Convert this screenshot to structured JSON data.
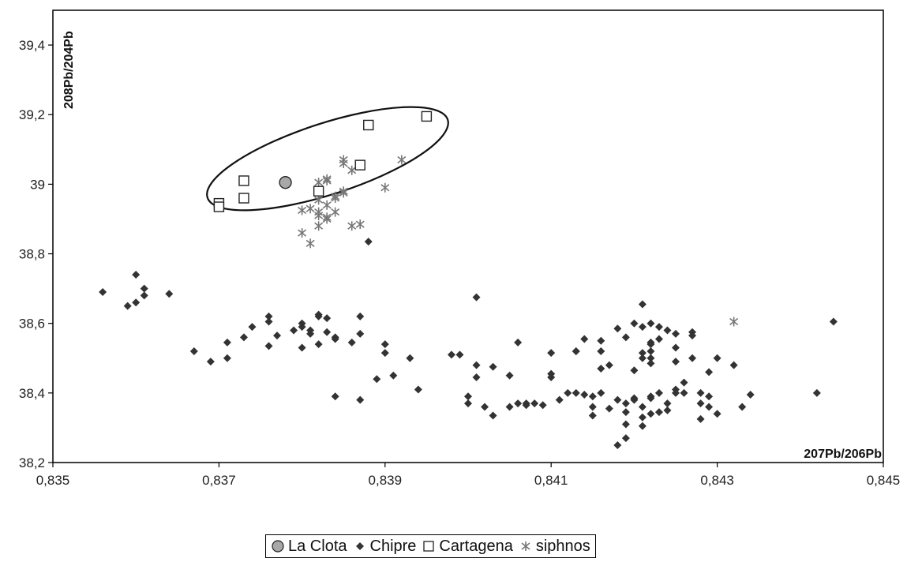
{
  "chart_data": {
    "type": "scatter",
    "xlabel": "207Pb/206Pb",
    "ylabel": "208Pb/204Pb",
    "xlim": [
      0.835,
      0.845
    ],
    "ylim": [
      38.2,
      39.5
    ],
    "x_ticks": [
      "0,835",
      "0,837",
      "0,839",
      "0,841",
      "0,843",
      "0,845"
    ],
    "y_ticks": [
      "38,2",
      "38,4",
      "38,6",
      "38,8",
      "39",
      "39,2",
      "39,4"
    ],
    "grid": false,
    "legend_position": "bottom",
    "annotation": "ellipse enclosing La Clota and Cartagena points",
    "series": [
      {
        "name": "La Clota",
        "marker": "circle",
        "color": "#a8a8a8",
        "points": [
          [
            0.8378,
            39.005
          ]
        ]
      },
      {
        "name": "Chipre",
        "marker": "diamond",
        "color": "#333333",
        "points": [
          [
            0.8356,
            38.69
          ],
          [
            0.8359,
            38.65
          ],
          [
            0.836,
            38.74
          ],
          [
            0.836,
            38.66
          ],
          [
            0.8361,
            38.7
          ],
          [
            0.8361,
            38.68
          ],
          [
            0.8364,
            38.685
          ],
          [
            0.8367,
            38.52
          ],
          [
            0.8369,
            38.49
          ],
          [
            0.8371,
            38.545
          ],
          [
            0.8371,
            38.5
          ],
          [
            0.8373,
            38.56
          ],
          [
            0.8374,
            38.59
          ],
          [
            0.8376,
            38.62
          ],
          [
            0.8376,
            38.605
          ],
          [
            0.8376,
            38.535
          ],
          [
            0.8377,
            38.565
          ],
          [
            0.8379,
            38.58
          ],
          [
            0.838,
            38.6
          ],
          [
            0.838,
            38.59
          ],
          [
            0.838,
            38.53
          ],
          [
            0.8381,
            38.57
          ],
          [
            0.8381,
            38.58
          ],
          [
            0.8382,
            38.625
          ],
          [
            0.8382,
            38.62
          ],
          [
            0.8382,
            38.54
          ],
          [
            0.8383,
            38.615
          ],
          [
            0.8383,
            38.575
          ],
          [
            0.8384,
            38.56
          ],
          [
            0.8384,
            38.555
          ],
          [
            0.8384,
            38.39
          ],
          [
            0.8386,
            38.545
          ],
          [
            0.8387,
            38.62
          ],
          [
            0.8387,
            38.57
          ],
          [
            0.8387,
            38.38
          ],
          [
            0.8388,
            38.835
          ],
          [
            0.8389,
            38.44
          ],
          [
            0.839,
            38.54
          ],
          [
            0.839,
            38.515
          ],
          [
            0.8391,
            38.45
          ],
          [
            0.8393,
            38.5
          ],
          [
            0.8394,
            38.41
          ],
          [
            0.8398,
            38.51
          ],
          [
            0.8399,
            38.51
          ],
          [
            0.84,
            38.39
          ],
          [
            0.84,
            38.37
          ],
          [
            0.8401,
            38.445
          ],
          [
            0.8401,
            38.48
          ],
          [
            0.8401,
            38.675
          ],
          [
            0.8402,
            38.36
          ],
          [
            0.8403,
            38.335
          ],
          [
            0.8403,
            38.475
          ],
          [
            0.8405,
            38.36
          ],
          [
            0.8405,
            38.45
          ],
          [
            0.8406,
            38.37
          ],
          [
            0.8406,
            38.545
          ],
          [
            0.8407,
            38.365
          ],
          [
            0.8407,
            38.37
          ],
          [
            0.8408,
            38.37
          ],
          [
            0.8409,
            38.365
          ],
          [
            0.841,
            38.445
          ],
          [
            0.841,
            38.515
          ],
          [
            0.841,
            38.455
          ],
          [
            0.8411,
            38.38
          ],
          [
            0.8412,
            38.4
          ],
          [
            0.8413,
            38.52
          ],
          [
            0.8413,
            38.52
          ],
          [
            0.8413,
            38.4
          ],
          [
            0.8414,
            38.395
          ],
          [
            0.8414,
            38.555
          ],
          [
            0.8415,
            38.39
          ],
          [
            0.8415,
            38.36
          ],
          [
            0.8415,
            38.335
          ],
          [
            0.8416,
            38.47
          ],
          [
            0.8416,
            38.52
          ],
          [
            0.8416,
            38.55
          ],
          [
            0.8416,
            38.4
          ],
          [
            0.8417,
            38.48
          ],
          [
            0.8417,
            38.355
          ],
          [
            0.8418,
            38.585
          ],
          [
            0.8418,
            38.38
          ],
          [
            0.8418,
            38.25
          ],
          [
            0.8419,
            38.56
          ],
          [
            0.8419,
            38.37
          ],
          [
            0.8419,
            38.345
          ],
          [
            0.8419,
            38.31
          ],
          [
            0.8419,
            38.27
          ],
          [
            0.842,
            38.6
          ],
          [
            0.842,
            38.465
          ],
          [
            0.842,
            38.385
          ],
          [
            0.842,
            38.38
          ],
          [
            0.8421,
            38.59
          ],
          [
            0.8421,
            38.515
          ],
          [
            0.8421,
            38.5
          ],
          [
            0.8421,
            38.36
          ],
          [
            0.8421,
            38.33
          ],
          [
            0.8421,
            38.305
          ],
          [
            0.8421,
            38.655
          ],
          [
            0.8422,
            38.6
          ],
          [
            0.8422,
            38.545
          ],
          [
            0.8422,
            38.54
          ],
          [
            0.8422,
            38.52
          ],
          [
            0.8422,
            38.5
          ],
          [
            0.8422,
            38.485
          ],
          [
            0.8422,
            38.39
          ],
          [
            0.8422,
            38.385
          ],
          [
            0.8422,
            38.34
          ],
          [
            0.8423,
            38.59
          ],
          [
            0.8423,
            38.555
          ],
          [
            0.8423,
            38.4
          ],
          [
            0.8423,
            38.345
          ],
          [
            0.8424,
            38.35
          ],
          [
            0.8424,
            38.58
          ],
          [
            0.8424,
            38.37
          ],
          [
            0.8425,
            38.57
          ],
          [
            0.8425,
            38.53
          ],
          [
            0.8425,
            38.49
          ],
          [
            0.8425,
            38.4
          ],
          [
            0.8425,
            38.41
          ],
          [
            0.8426,
            38.43
          ],
          [
            0.8426,
            38.4
          ],
          [
            0.8427,
            38.575
          ],
          [
            0.8427,
            38.565
          ],
          [
            0.8427,
            38.5
          ],
          [
            0.8428,
            38.37
          ],
          [
            0.8428,
            38.325
          ],
          [
            0.8428,
            38.4
          ],
          [
            0.8429,
            38.39
          ],
          [
            0.8429,
            38.46
          ],
          [
            0.8429,
            38.36
          ],
          [
            0.843,
            38.5
          ],
          [
            0.843,
            38.34
          ],
          [
            0.8432,
            38.48
          ],
          [
            0.8433,
            38.36
          ],
          [
            0.8434,
            38.395
          ],
          [
            0.8442,
            38.4
          ],
          [
            0.8444,
            38.605
          ]
        ]
      },
      {
        "name": "Cartagena",
        "marker": "square",
        "color": "#ffffff",
        "points": [
          [
            0.837,
            38.945
          ],
          [
            0.837,
            38.935
          ],
          [
            0.8373,
            39.01
          ],
          [
            0.8373,
            38.96
          ],
          [
            0.8382,
            38.98
          ],
          [
            0.8387,
            39.055
          ],
          [
            0.8388,
            39.17
          ],
          [
            0.8395,
            39.195
          ]
        ]
      },
      {
        "name": "siphnos",
        "marker": "asterisk",
        "color": "#777777",
        "points": [
          [
            0.838,
            38.86
          ],
          [
            0.838,
            38.925
          ],
          [
            0.8381,
            38.93
          ],
          [
            0.8381,
            38.83
          ],
          [
            0.8382,
            38.92
          ],
          [
            0.8382,
            38.91
          ],
          [
            0.8382,
            38.88
          ],
          [
            0.8382,
            38.955
          ],
          [
            0.8382,
            39.005
          ],
          [
            0.8383,
            39.01
          ],
          [
            0.8383,
            39.015
          ],
          [
            0.8383,
            38.905
          ],
          [
            0.8383,
            38.94
          ],
          [
            0.8383,
            38.9
          ],
          [
            0.8384,
            38.92
          ],
          [
            0.8384,
            38.96
          ],
          [
            0.8384,
            38.965
          ],
          [
            0.8385,
            39.06
          ],
          [
            0.8385,
            39.07
          ],
          [
            0.8385,
            38.98
          ],
          [
            0.8385,
            38.975
          ],
          [
            0.8386,
            39.04
          ],
          [
            0.8386,
            38.88
          ],
          [
            0.8387,
            38.885
          ],
          [
            0.839,
            38.99
          ],
          [
            0.8392,
            39.07
          ],
          [
            0.8432,
            38.605
          ]
        ]
      }
    ]
  },
  "legend": {
    "items": [
      {
        "label": "La Clota",
        "marker": "circle"
      },
      {
        "label": "Chipre",
        "marker": "diamond"
      },
      {
        "label": "Cartagena",
        "marker": "square"
      },
      {
        "label": "siphnos",
        "marker": "asterisk"
      }
    ]
  }
}
